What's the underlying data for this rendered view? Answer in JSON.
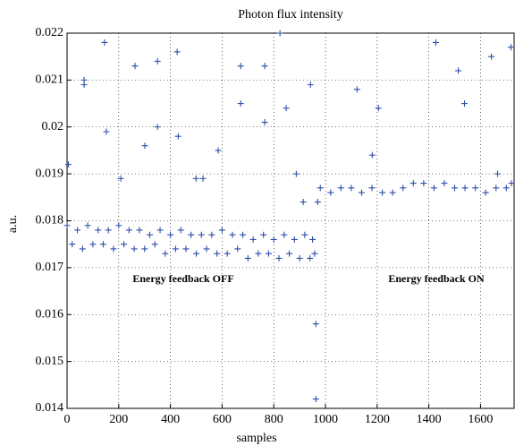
{
  "chart_data": {
    "type": "scatter",
    "title": "Photon flux intensity",
    "x_label": "samples",
    "y_label": "a.u.",
    "annotations": [
      "Energy feedback OFF",
      "Energy feedback ON"
    ],
    "color": "#2f4fa8",
    "marker": "+",
    "grid": true,
    "xlim": [
      0,
      1730
    ],
    "ylim": [
      0.014,
      0.022
    ],
    "xticks": [
      0,
      200,
      400,
      600,
      800,
      1000,
      1200,
      1400,
      1600
    ],
    "yticks": [
      0.014,
      0.015,
      0.016,
      0.017,
      0.018,
      0.019,
      0.02,
      0.021,
      0.022
    ],
    "x": [
      5,
      66,
      66,
      145,
      152,
      208,
      263,
      301,
      350,
      350,
      426,
      430,
      499,
      526,
      585,
      672,
      672,
      765,
      765,
      824,
      848,
      887,
      914,
      942,
      970,
      963,
      963,
      1122,
      1181,
      1205,
      1427,
      1514,
      1538,
      1642,
      1666,
      1718,
      0,
      40,
      80,
      120,
      160,
      200,
      240,
      280,
      320,
      360,
      400,
      440,
      480,
      520,
      560,
      600,
      640,
      680,
      720,
      760,
      800,
      840,
      880,
      920,
      950,
      20,
      60,
      100,
      140,
      180,
      220,
      260,
      300,
      340,
      380,
      420,
      460,
      500,
      540,
      580,
      620,
      660,
      700,
      740,
      780,
      820,
      860,
      900,
      940,
      958,
      980,
      1020,
      1060,
      1100,
      1140,
      1180,
      1220,
      1260,
      1300,
      1340,
      1380,
      1420,
      1460,
      1500,
      1540,
      1580,
      1620,
      1660,
      1700,
      1720
    ],
    "values": [
      0.0192,
      0.021,
      0.0209,
      0.0218,
      0.0199,
      0.0189,
      0.0213,
      0.0196,
      0.0214,
      0.02,
      0.0216,
      0.0198,
      0.0189,
      0.0189,
      0.0195,
      0.0213,
      0.0205,
      0.0213,
      0.0201,
      0.022,
      0.0204,
      0.019,
      0.0184,
      0.0209,
      0.0184,
      0.0158,
      0.0142,
      0.0208,
      0.0194,
      0.0204,
      0.0218,
      0.0212,
      0.0205,
      0.0215,
      0.019,
      0.0217,
      0.0179,
      0.0178,
      0.0179,
      0.0178,
      0.0178,
      0.0179,
      0.0178,
      0.0178,
      0.0177,
      0.0178,
      0.0177,
      0.0178,
      0.0177,
      0.0177,
      0.0177,
      0.0178,
      0.0177,
      0.0177,
      0.0176,
      0.0177,
      0.0176,
      0.0177,
      0.0176,
      0.0177,
      0.0176,
      0.0175,
      0.0174,
      0.0175,
      0.0175,
      0.0174,
      0.0175,
      0.0174,
      0.0174,
      0.0175,
      0.0173,
      0.0174,
      0.0174,
      0.0173,
      0.0174,
      0.0173,
      0.0173,
      0.0174,
      0.0172,
      0.0173,
      0.0173,
      0.0172,
      0.0173,
      0.0172,
      0.0172,
      0.0173,
      0.0187,
      0.0186,
      0.0187,
      0.0187,
      0.0186,
      0.0187,
      0.0186,
      0.0186,
      0.0187,
      0.0188,
      0.0188,
      0.0187,
      0.0188,
      0.0187,
      0.0187,
      0.0187,
      0.0186,
      0.0187,
      0.0187,
      0.0188
    ]
  }
}
